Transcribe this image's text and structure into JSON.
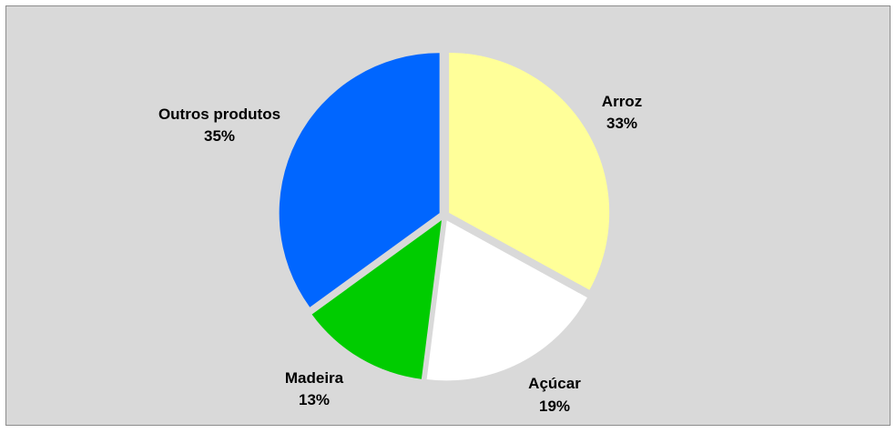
{
  "chart_data": {
    "type": "pie",
    "title": "",
    "slices": [
      {
        "label": "Arroz",
        "value": 33,
        "value_label": "33%",
        "color": "#ffff99"
      },
      {
        "label": "Açúcar",
        "value": 19,
        "value_label": "19%",
        "color": "#ffffff"
      },
      {
        "label": "Madeira",
        "value": 13,
        "value_label": "13%",
        "color": "#00cc00"
      },
      {
        "label": "Outros produtos",
        "value": 35,
        "value_label": "35%",
        "color": "#0066ff"
      }
    ],
    "start_angle_deg": 0,
    "direction": "clockwise",
    "legend": "none",
    "background_color": "#d9d9d9"
  }
}
